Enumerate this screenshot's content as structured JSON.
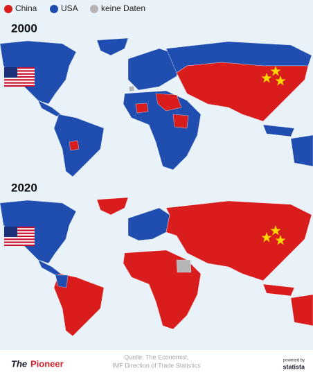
{
  "legend": [
    {
      "label": "China",
      "color": "#d91c1c"
    },
    {
      "label": "USA",
      "color": "#1f4db0"
    },
    {
      "label": "keine Daten",
      "color": "#b5b5b5"
    }
  ],
  "maps": [
    {
      "year": "2000"
    },
    {
      "year": "2020"
    }
  ],
  "footer": {
    "brand_the": "The",
    "brand_pioneer": "Pioneer",
    "source_line1": "Quelle: The Economist,",
    "source_line2": "IMF Direction of Trade Statistics",
    "powered": "powered by",
    "statista": "statista"
  }
}
